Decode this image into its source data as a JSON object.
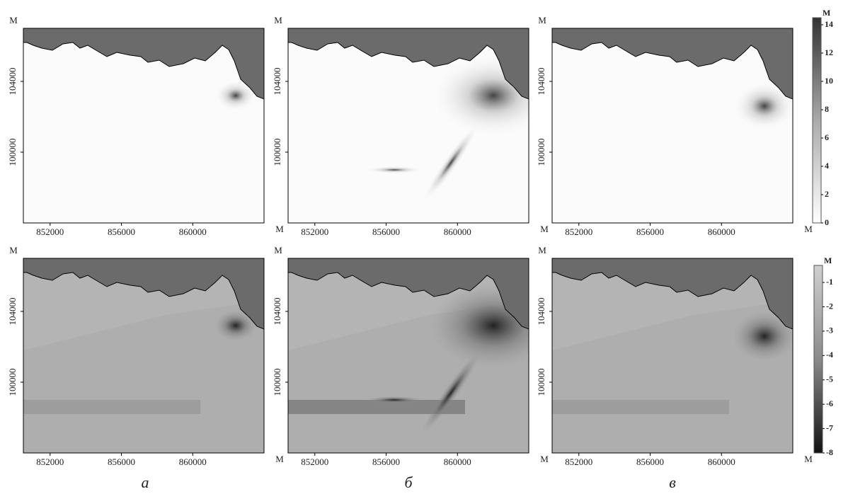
{
  "unit": "M",
  "xlim": [
    850500,
    864000
  ],
  "xticks": [
    852000,
    856000,
    860000
  ],
  "ylim": [
    96000,
    107000
  ],
  "yticks": [
    100000,
    104000
  ],
  "top_colorbar": {
    "lim": [
      0,
      14.5
    ],
    "ticks": [
      0,
      2,
      4,
      6,
      8,
      10,
      12,
      14
    ]
  },
  "bottom_colorbar": {
    "lim": [
      -8,
      -0.3
    ],
    "ticks": [
      -1,
      -2,
      -3,
      -4,
      -5,
      -6,
      -7,
      -8
    ]
  },
  "panel_labels": [
    "а",
    "б",
    "в"
  ]
}
